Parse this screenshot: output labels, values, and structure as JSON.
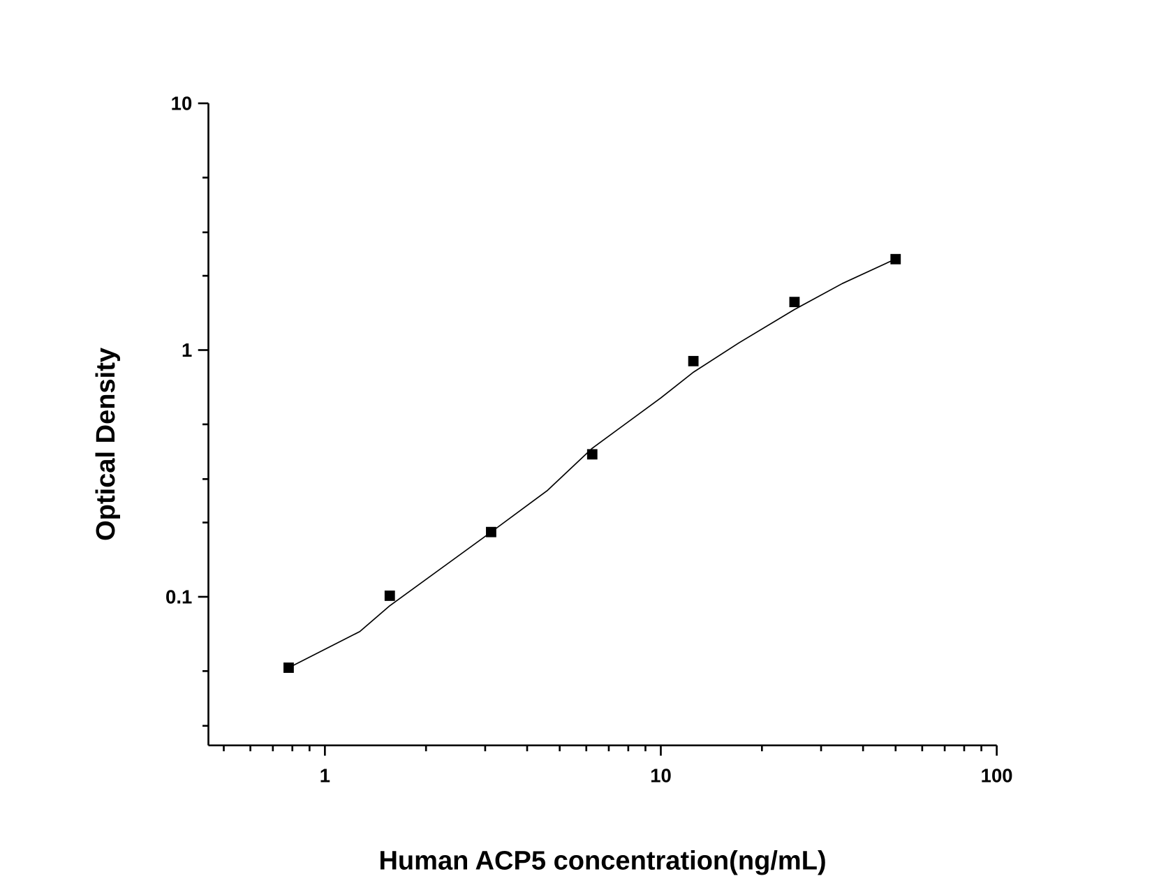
{
  "chart_data": {
    "type": "scatter",
    "x_label": "Human ACP5 concentration(ng/mL)",
    "y_label": "Optical Density",
    "xscale": "log",
    "yscale": "log",
    "xlim": [
      0.45,
      100
    ],
    "ylim": [
      0.025,
      10
    ],
    "xticks": [
      1,
      10,
      100
    ],
    "yticks": [
      0.1,
      1,
      10
    ],
    "xminorticks": [
      0.5,
      0.6,
      0.7,
      0.8,
      0.9,
      2,
      3,
      4,
      5,
      6,
      7,
      8,
      9,
      20,
      30,
      40,
      50,
      60,
      70,
      80,
      90
    ],
    "yminorticks": [
      0.03,
      0.05,
      0.2,
      0.3,
      0.5,
      2,
      3,
      5
    ],
    "series": [
      {
        "color": "#000000",
        "marker": "square",
        "x": [
          0.78,
          1.56,
          3.125,
          6.25,
          12.5,
          25,
          50
        ],
        "values": [
          0.0516,
          0.101,
          0.183,
          0.378,
          0.902,
          1.566,
          2.336
        ]
      },
      {
        "color": "#000000",
        "marker": "line",
        "x": [
          0.78,
          1.27,
          1.56,
          3.125,
          4.6,
          6.25,
          10,
          12.5,
          17.1,
          25,
          34.7,
          50
        ],
        "values": [
          0.0516,
          0.0723,
          0.092,
          0.183,
          0.27,
          0.4,
          0.64,
          0.813,
          1.07,
          1.46,
          1.86,
          2.34
        ]
      }
    ]
  }
}
